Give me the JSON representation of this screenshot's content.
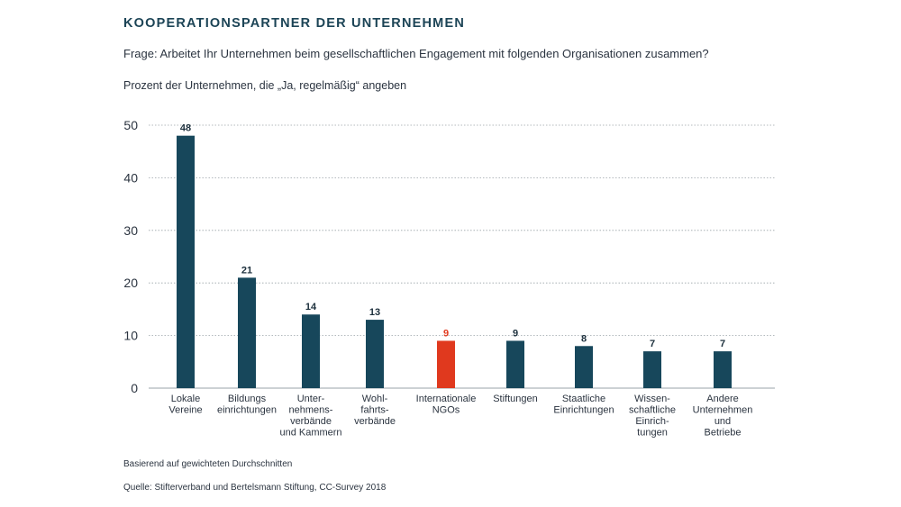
{
  "header": {
    "title": "KOOPERATIONSPARTNER DER UNTERNEHMEN",
    "question": "Frage: Arbeitet Ihr Unternehmen beim gesellschaftlichen Engagement mit folgenden Organisationen zusammen?",
    "subtitle": "Prozent der Unternehmen, die „Ja, regelmäßig“ angeben"
  },
  "footer": {
    "note": "Basierend auf gewichteten Durchschnitten",
    "source": "Quelle: Stifterverband und Bertelsmann Stiftung, CC-Survey 2018"
  },
  "colors": {
    "bar": "#17475b",
    "highlight": "#e0391e",
    "grid": "#9aa3a8",
    "text": "#2b3440"
  },
  "chart_data": {
    "type": "bar",
    "title": "KOOPERATIONSPARTNER DER UNTERNEHMEN",
    "xlabel": "",
    "ylabel": "",
    "ylim": [
      0,
      50
    ],
    "yticks": [
      0,
      10,
      20,
      30,
      40,
      50
    ],
    "grid": true,
    "categories": [
      [
        "Lokale",
        "Vereine"
      ],
      [
        "Bildungs",
        "einrichtungen"
      ],
      [
        "Unter-",
        "nehmens-",
        "verbände",
        "und Kammern"
      ],
      [
        "Wohl-",
        "fahrts-",
        "verbände"
      ],
      [
        "Internationale",
        "NGOs"
      ],
      [
        "Stiftungen"
      ],
      [
        "Staatliche",
        "Einrichtungen"
      ],
      [
        "Wissen-",
        "schaftliche",
        "Einrich-",
        "tungen"
      ],
      [
        "Andere",
        "Unternehmen",
        "und",
        "Betriebe"
      ]
    ],
    "values": [
      48,
      21,
      14,
      13,
      9,
      9,
      8,
      7,
      7
    ],
    "highlight_index": 4
  }
}
